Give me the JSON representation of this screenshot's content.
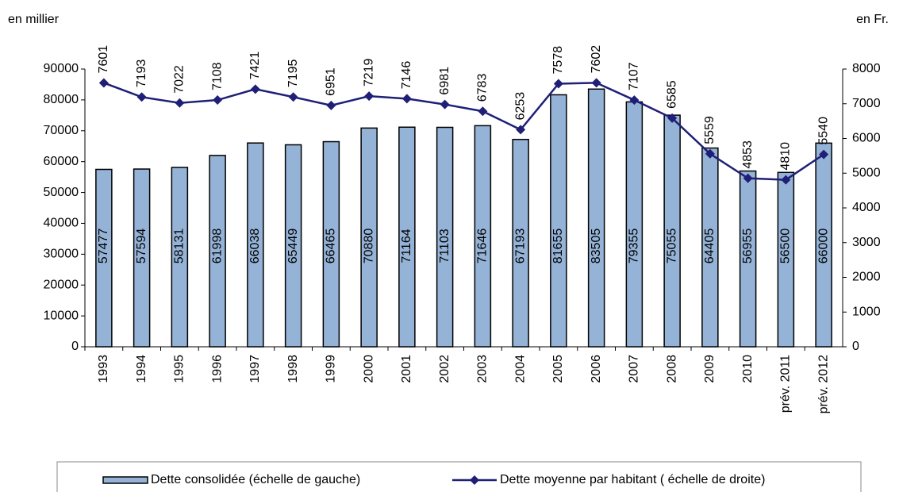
{
  "chart_data": {
    "type": "bar",
    "y_label": "en millier",
    "y2_label": "en Fr.",
    "categories": [
      "1993",
      "1994",
      "1995",
      "1996",
      "1997",
      "1998",
      "1999",
      "2000",
      "2001",
      "2002",
      "2003",
      "2004",
      "2005",
      "2006",
      "2007",
      "2008",
      "2009",
      "2010",
      "prév. 2011",
      "prév. 2012"
    ],
    "series": [
      {
        "name": "Dette consolidée (échelle de gauche)",
        "type": "bar",
        "color": "#95b3d7",
        "axis": "y",
        "values": [
          57477,
          57594,
          58131,
          61998,
          66038,
          65449,
          66465,
          70880,
          71164,
          71103,
          71646,
          67193,
          81655,
          83505,
          79355,
          75055,
          64405,
          56955,
          56500,
          66000
        ]
      },
      {
        "name": "Dette moyenne par habitant ( échelle de droite)",
        "type": "line",
        "color": "#1f1f78",
        "axis": "y2",
        "values": [
          7601,
          7193,
          7022,
          7108,
          7421,
          7195,
          6951,
          7219,
          7146,
          6981,
          6783,
          6253,
          7578,
          7602,
          7107,
          6585,
          5559,
          4853,
          4810,
          5540
        ]
      }
    ],
    "ylim": [
      0,
      90000
    ],
    "yticks": [
      0,
      10000,
      20000,
      30000,
      40000,
      50000,
      60000,
      70000,
      80000,
      90000
    ],
    "y2lim": [
      0,
      8000
    ],
    "y2ticks": [
      0,
      1000,
      2000,
      3000,
      4000,
      5000,
      6000,
      7000,
      8000
    ]
  }
}
